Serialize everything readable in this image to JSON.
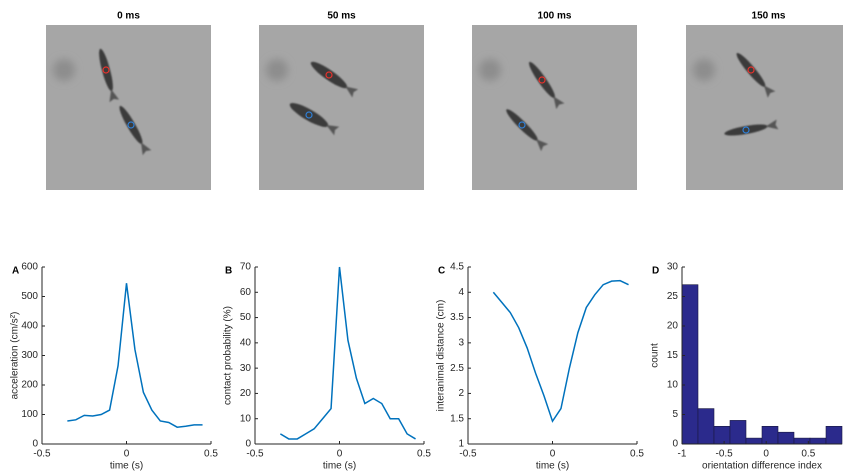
{
  "photos": [
    {
      "title": "0 ms"
    },
    {
      "title": "50 ms"
    },
    {
      "title": "100 ms"
    },
    {
      "title": "150 ms"
    }
  ],
  "chart_data": [
    {
      "type": "line",
      "panel_label": "A",
      "x_label": "time (s)",
      "y_label": "acceleration (cm/s²)",
      "color": "#0072bd",
      "x": [
        -0.35,
        -0.3,
        -0.25,
        -0.2,
        -0.15,
        -0.1,
        -0.05,
        0,
        0.05,
        0.1,
        0.15,
        0.2,
        0.25,
        0.3,
        0.35,
        0.4,
        0.45
      ],
      "values": [
        78,
        82,
        97,
        95,
        100,
        115,
        265,
        545,
        320,
        175,
        115,
        78,
        73,
        57,
        60,
        65,
        65
      ],
      "xlim": [
        -0.5,
        0.5
      ],
      "xticks": [
        -0.5,
        0,
        0.5
      ],
      "ylim": [
        0,
        600
      ],
      "yticks": [
        0,
        100,
        200,
        300,
        400,
        500,
        600
      ]
    },
    {
      "type": "line",
      "panel_label": "B",
      "x_label": "time (s)",
      "y_label": "contact probability (%)",
      "color": "#0072bd",
      "x": [
        -0.35,
        -0.3,
        -0.25,
        -0.2,
        -0.15,
        -0.1,
        -0.05,
        0,
        0.05,
        0.1,
        0.15,
        0.2,
        0.25,
        0.3,
        0.35,
        0.4,
        0.45
      ],
      "values": [
        4,
        2,
        2,
        4,
        6,
        10,
        14,
        70,
        41,
        26,
        16,
        18,
        16,
        10,
        10,
        4,
        2
      ],
      "xlim": [
        -0.5,
        0.5
      ],
      "xticks": [
        -0.5,
        0,
        0.5
      ],
      "ylim": [
        0,
        70
      ],
      "yticks": [
        0,
        10,
        20,
        30,
        40,
        50,
        60,
        70
      ]
    },
    {
      "type": "line",
      "panel_label": "C",
      "x_label": "time (s)",
      "y_label": "interanimal distance (cm)",
      "color": "#0072bd",
      "x": [
        -0.35,
        -0.3,
        -0.25,
        -0.2,
        -0.15,
        -0.1,
        -0.05,
        0,
        0.05,
        0.1,
        0.15,
        0.2,
        0.25,
        0.3,
        0.35,
        0.4,
        0.45
      ],
      "values": [
        4.0,
        3.8,
        3.6,
        3.3,
        2.9,
        2.4,
        1.95,
        1.45,
        1.7,
        2.5,
        3.2,
        3.7,
        3.95,
        4.15,
        4.22,
        4.23,
        4.15
      ],
      "xlim": [
        -0.5,
        0.5
      ],
      "xticks": [
        -0.5,
        0,
        0.5
      ],
      "ylim": [
        1,
        4.5
      ],
      "yticks": [
        1,
        1.5,
        2,
        2.5,
        3,
        3.5,
        4,
        4.5
      ]
    },
    {
      "type": "histogram",
      "panel_label": "D",
      "x_label": "orientation difference index",
      "y_label": "count",
      "color": "#2b2a8c",
      "bins": [
        -1,
        -0.81,
        -0.62,
        -0.43,
        -0.24,
        -0.05,
        0.14,
        0.33,
        0.52,
        0.71,
        0.9
      ],
      "values": [
        27,
        6,
        3,
        4,
        1,
        3,
        2,
        1,
        1,
        3
      ],
      "xlim": [
        -1,
        0.9
      ],
      "xticks": [
        -1,
        -0.5,
        0,
        0.5
      ],
      "ylim": [
        0,
        30
      ],
      "yticks": [
        0,
        5,
        10,
        15,
        20,
        25,
        30
      ]
    }
  ]
}
